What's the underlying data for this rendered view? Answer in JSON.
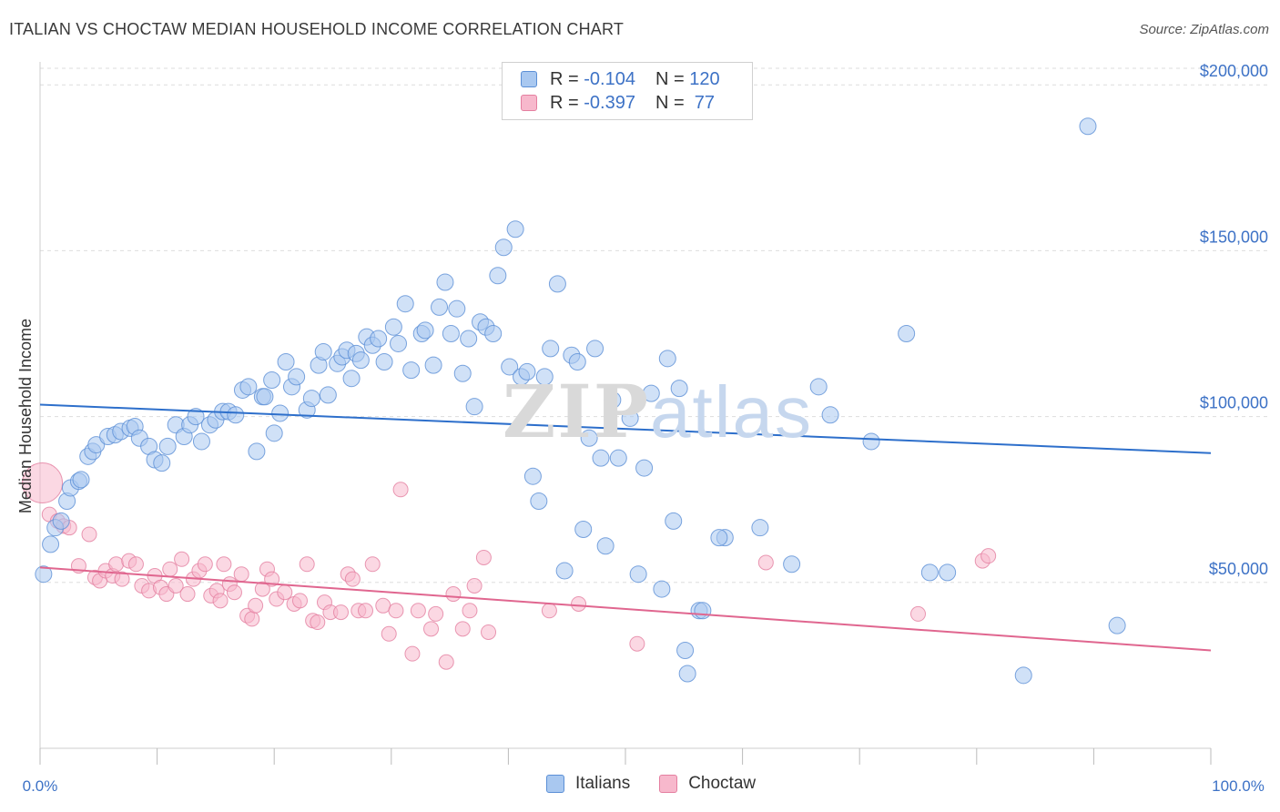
{
  "title": "ITALIAN VS CHOCTAW MEDIAN HOUSEHOLD INCOME CORRELATION CHART",
  "source": "Source: ZipAtlas.com",
  "watermark": {
    "zip": "ZIP",
    "atlas": "atlas"
  },
  "legend_top": [
    {
      "r_label": "R = ",
      "r_value": "-0.104",
      "n_label": "N = ",
      "n_value": "120"
    },
    {
      "r_label": "R = ",
      "r_value": "-0.397",
      "n_label": "N = ",
      "n_value": " 77"
    }
  ],
  "legend_bottom": [
    "Italians",
    "Choctaw"
  ],
  "colors": {
    "italians_fill": "#a9c8f0",
    "italians_stroke": "#5b8fd6",
    "italians_line": "#2d6fcb",
    "choctaw_fill": "#f7b8cc",
    "choctaw_stroke": "#e47fa0",
    "choctaw_line": "#e0668f",
    "grid": "#dddddd",
    "tick_label": "#3d72c6"
  },
  "chart_data": {
    "type": "scatter",
    "title": "ITALIAN VS CHOCTAW MEDIAN HOUSEHOLD INCOME CORRELATION CHART",
    "xlabel": "",
    "ylabel": "Median Household Income",
    "xlim": [
      0,
      100
    ],
    "ylim": [
      0,
      205000
    ],
    "x_tick_labels": [
      "0.0%",
      "100.0%"
    ],
    "y_ticks": [
      50000,
      100000,
      150000,
      200000
    ],
    "y_tick_labels": [
      "$50,000",
      "$100,000",
      "$150,000",
      "$200,000"
    ],
    "grid": true,
    "legend_placement": "top-center",
    "series": [
      {
        "name": "Italians",
        "r": -0.104,
        "n": 120,
        "trend": {
          "x": [
            0,
            100
          ],
          "y": [
            103600,
            89000
          ]
        },
        "points": [
          [
            0.3,
            52500
          ],
          [
            0.9,
            61500
          ],
          [
            1.3,
            66500
          ],
          [
            1.8,
            68500
          ],
          [
            2.3,
            74500
          ],
          [
            2.6,
            78500
          ],
          [
            3.3,
            80500
          ],
          [
            3.5,
            81000
          ],
          [
            4.1,
            88000
          ],
          [
            4.5,
            89500
          ],
          [
            4.8,
            91500
          ],
          [
            5.8,
            94000
          ],
          [
            6.4,
            94500
          ],
          [
            6.9,
            95500
          ],
          [
            7.7,
            96500
          ],
          [
            8.1,
            97000
          ],
          [
            8.5,
            93500
          ],
          [
            9.3,
            91000
          ],
          [
            9.8,
            87000
          ],
          [
            10.4,
            86000
          ],
          [
            10.9,
            91000
          ],
          [
            11.6,
            97500
          ],
          [
            12.3,
            94000
          ],
          [
            12.8,
            97500
          ],
          [
            13.3,
            100000
          ],
          [
            13.8,
            92500
          ],
          [
            14.5,
            97500
          ],
          [
            15.0,
            99000
          ],
          [
            15.6,
            101500
          ],
          [
            16.1,
            101500
          ],
          [
            16.7,
            100500
          ],
          [
            17.3,
            108000
          ],
          [
            17.8,
            109000
          ],
          [
            18.5,
            89500
          ],
          [
            19.0,
            106000
          ],
          [
            19.2,
            106000
          ],
          [
            19.8,
            111000
          ],
          [
            20.0,
            95000
          ],
          [
            20.5,
            101000
          ],
          [
            21.0,
            116500
          ],
          [
            21.5,
            109000
          ],
          [
            21.9,
            112000
          ],
          [
            22.8,
            102000
          ],
          [
            23.2,
            105500
          ],
          [
            23.8,
            115500
          ],
          [
            24.2,
            119500
          ],
          [
            24.6,
            106500
          ],
          [
            25.4,
            116000
          ],
          [
            25.8,
            118000
          ],
          [
            26.2,
            120000
          ],
          [
            26.6,
            111500
          ],
          [
            27.0,
            119000
          ],
          [
            27.4,
            117000
          ],
          [
            27.9,
            124000
          ],
          [
            28.4,
            121500
          ],
          [
            28.9,
            123500
          ],
          [
            29.4,
            116500
          ],
          [
            30.2,
            127000
          ],
          [
            30.6,
            122000
          ],
          [
            31.2,
            134000
          ],
          [
            31.7,
            114000
          ],
          [
            32.6,
            125000
          ],
          [
            32.9,
            126000
          ],
          [
            33.6,
            115500
          ],
          [
            34.1,
            133000
          ],
          [
            34.6,
            140500
          ],
          [
            35.1,
            125000
          ],
          [
            35.6,
            132500
          ],
          [
            36.1,
            113000
          ],
          [
            36.6,
            123500
          ],
          [
            37.1,
            103000
          ],
          [
            37.6,
            128500
          ],
          [
            38.1,
            127000
          ],
          [
            38.7,
            125000
          ],
          [
            39.1,
            142500
          ],
          [
            39.6,
            151000
          ],
          [
            40.1,
            115000
          ],
          [
            40.6,
            156500
          ],
          [
            41.1,
            112000
          ],
          [
            41.6,
            113500
          ],
          [
            42.1,
            82000
          ],
          [
            42.6,
            74500
          ],
          [
            43.1,
            112000
          ],
          [
            43.6,
            120500
          ],
          [
            44.2,
            140000
          ],
          [
            44.8,
            53500
          ],
          [
            45.4,
            118500
          ],
          [
            45.9,
            116500
          ],
          [
            46.4,
            66000
          ],
          [
            46.9,
            93500
          ],
          [
            47.4,
            120500
          ],
          [
            47.9,
            87500
          ],
          [
            48.3,
            61000
          ],
          [
            48.9,
            105000
          ],
          [
            49.4,
            87500
          ],
          [
            50.4,
            99500
          ],
          [
            51.1,
            52500
          ],
          [
            51.6,
            84500
          ],
          [
            52.2,
            107000
          ],
          [
            53.1,
            48000
          ],
          [
            53.6,
            117500
          ],
          [
            54.1,
            68500
          ],
          [
            54.6,
            108500
          ],
          [
            55.1,
            29500
          ],
          [
            55.3,
            22500
          ],
          [
            56.3,
            41500
          ],
          [
            58.5,
            63500
          ],
          [
            61.5,
            66500
          ],
          [
            64.2,
            55500
          ],
          [
            66.5,
            109000
          ],
          [
            67.5,
            100500
          ],
          [
            71.0,
            92500
          ],
          [
            74.0,
            125000
          ],
          [
            76.0,
            53000
          ],
          [
            77.5,
            53000
          ],
          [
            84.0,
            22000
          ],
          [
            89.5,
            187500
          ],
          [
            92.0,
            37000
          ],
          [
            56.6,
            41500
          ],
          [
            58.0,
            63500
          ]
        ]
      },
      {
        "name": "Choctaw",
        "r": -0.397,
        "n": 77,
        "trend": {
          "x": [
            0,
            100
          ],
          "y": [
            54500,
            29500
          ]
        },
        "points": [
          [
            0.2,
            80000
          ],
          [
            0.8,
            70500
          ],
          [
            1.5,
            68500
          ],
          [
            2.0,
            67000
          ],
          [
            2.5,
            66500
          ],
          [
            3.3,
            55000
          ],
          [
            4.2,
            64500
          ],
          [
            4.7,
            51500
          ],
          [
            5.1,
            50500
          ],
          [
            5.6,
            53500
          ],
          [
            6.2,
            52000
          ],
          [
            6.5,
            55500
          ],
          [
            7.0,
            51000
          ],
          [
            7.6,
            56500
          ],
          [
            8.2,
            55500
          ],
          [
            8.7,
            49000
          ],
          [
            9.3,
            47500
          ],
          [
            9.8,
            52000
          ],
          [
            10.3,
            48500
          ],
          [
            10.8,
            46500
          ],
          [
            11.1,
            54000
          ],
          [
            11.6,
            49000
          ],
          [
            12.1,
            57000
          ],
          [
            12.6,
            46500
          ],
          [
            13.1,
            51000
          ],
          [
            13.6,
            53500
          ],
          [
            14.1,
            55500
          ],
          [
            14.6,
            46000
          ],
          [
            15.1,
            47500
          ],
          [
            15.4,
            44500
          ],
          [
            15.7,
            55500
          ],
          [
            16.2,
            49500
          ],
          [
            16.6,
            47000
          ],
          [
            17.2,
            52500
          ],
          [
            17.7,
            40000
          ],
          [
            18.1,
            39000
          ],
          [
            18.4,
            43000
          ],
          [
            19.0,
            48000
          ],
          [
            19.4,
            54000
          ],
          [
            19.8,
            51000
          ],
          [
            20.2,
            45000
          ],
          [
            20.9,
            47000
          ],
          [
            21.7,
            43500
          ],
          [
            22.2,
            44500
          ],
          [
            22.8,
            55500
          ],
          [
            23.3,
            38500
          ],
          [
            23.7,
            38000
          ],
          [
            24.3,
            44000
          ],
          [
            24.8,
            41000
          ],
          [
            25.7,
            41000
          ],
          [
            26.3,
            52500
          ],
          [
            26.7,
            51000
          ],
          [
            27.2,
            41500
          ],
          [
            27.8,
            41500
          ],
          [
            28.4,
            55500
          ],
          [
            29.3,
            43000
          ],
          [
            29.8,
            34500
          ],
          [
            30.4,
            41500
          ],
          [
            30.8,
            78000
          ],
          [
            31.8,
            28500
          ],
          [
            32.3,
            41500
          ],
          [
            33.4,
            36000
          ],
          [
            33.8,
            40500
          ],
          [
            34.7,
            26000
          ],
          [
            35.3,
            46500
          ],
          [
            36.1,
            36000
          ],
          [
            36.7,
            41500
          ],
          [
            37.1,
            49000
          ],
          [
            37.9,
            57500
          ],
          [
            38.3,
            35000
          ],
          [
            43.5,
            41500
          ],
          [
            46.0,
            43500
          ],
          [
            51.0,
            31500
          ],
          [
            62.0,
            56000
          ],
          [
            75.0,
            40500
          ],
          [
            80.5,
            56500
          ],
          [
            81.0,
            58000
          ]
        ]
      }
    ]
  }
}
